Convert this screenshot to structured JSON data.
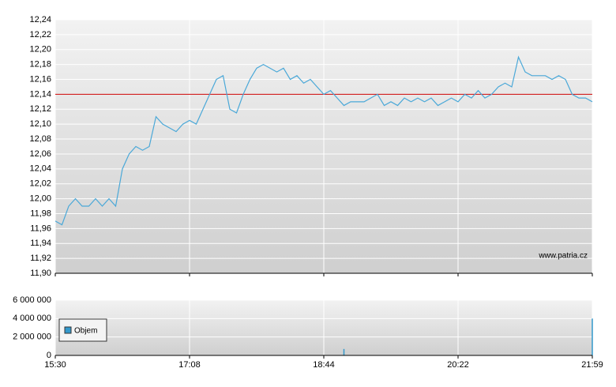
{
  "chart_data": [
    {
      "type": "line",
      "color": "#4aa8d8",
      "grid": true,
      "reference_line": 12.14,
      "reference_color": "#cc0000",
      "annotation": "www.patria.cz",
      "ylim": [
        11.9,
        12.24
      ],
      "yticks": [
        {
          "value": 11.9,
          "label": "11,90"
        },
        {
          "value": 11.92,
          "label": "11,92"
        },
        {
          "value": 11.94,
          "label": "11,94"
        },
        {
          "value": 11.96,
          "label": "11,96"
        },
        {
          "value": 11.98,
          "label": "11,98"
        },
        {
          "value": 12.0,
          "label": "12,00"
        },
        {
          "value": 12.02,
          "label": "12,02"
        },
        {
          "value": 12.04,
          "label": "12,04"
        },
        {
          "value": 12.06,
          "label": "12,06"
        },
        {
          "value": 12.08,
          "label": "12,08"
        },
        {
          "value": 12.1,
          "label": "12,10"
        },
        {
          "value": 12.12,
          "label": "12,12"
        },
        {
          "value": 12.14,
          "label": "12,14"
        },
        {
          "value": 12.16,
          "label": "12,16"
        },
        {
          "value": 12.18,
          "label": "12,18"
        },
        {
          "value": 12.2,
          "label": "12,20"
        },
        {
          "value": 12.22,
          "label": "12,22"
        },
        {
          "value": 12.24,
          "label": "12,24"
        }
      ],
      "values": [
        11.97,
        11.965,
        11.99,
        12.0,
        11.99,
        11.99,
        12.0,
        11.99,
        12.0,
        11.99,
        12.04,
        12.06,
        12.07,
        12.065,
        12.07,
        12.11,
        12.1,
        12.095,
        12.09,
        12.1,
        12.105,
        12.1,
        12.12,
        12.14,
        12.16,
        12.165,
        12.12,
        12.115,
        12.14,
        12.16,
        12.175,
        12.18,
        12.175,
        12.17,
        12.175,
        12.16,
        12.165,
        12.155,
        12.16,
        12.15,
        12.14,
        12.145,
        12.135,
        12.125,
        12.13,
        12.13,
        12.13,
        12.135,
        12.14,
        12.125,
        12.13,
        12.125,
        12.135,
        12.13,
        12.135,
        12.13,
        12.135,
        12.125,
        12.13,
        12.135,
        12.13,
        12.14,
        12.135,
        12.145,
        12.135,
        12.14,
        12.15,
        12.155,
        12.15,
        12.19,
        12.17,
        12.165,
        12.165,
        12.165,
        12.16,
        12.165,
        12.16,
        12.14,
        12.135,
        12.135,
        12.13
      ]
    },
    {
      "type": "bar",
      "grid": true,
      "legend": "upper left",
      "categories": [
        "15:30",
        null,
        null,
        null,
        null,
        null,
        null,
        null,
        null,
        null,
        null,
        null,
        null,
        null,
        null,
        null,
        null,
        null,
        null,
        null,
        "17:08",
        null,
        null,
        null,
        null,
        null,
        null,
        null,
        null,
        null,
        null,
        null,
        null,
        null,
        null,
        null,
        null,
        null,
        null,
        null,
        "18:44",
        null,
        null,
        null,
        null,
        null,
        null,
        null,
        null,
        null,
        null,
        null,
        null,
        null,
        null,
        null,
        null,
        null,
        null,
        null,
        "20:22",
        null,
        null,
        null,
        null,
        null,
        null,
        null,
        null,
        null,
        null,
        null,
        null,
        null,
        null,
        null,
        null,
        null,
        null,
        null,
        "21:59"
      ],
      "ylim": [
        0,
        6000000
      ],
      "yticks": [
        0,
        {
          "value": 2000000,
          "label": "2 000 000"
        },
        {
          "value": 4000000,
          "label": "4 000 000"
        },
        {
          "value": 6000000,
          "label": "6 000 000"
        }
      ],
      "series": [
        {
          "name": "Objem",
          "color": "#3399cc",
          "values": [
            0,
            0,
            0,
            0,
            0,
            0,
            0,
            0,
            0,
            0,
            0,
            0,
            0,
            0,
            0,
            0,
            0,
            0,
            0,
            0,
            0,
            0,
            0,
            0,
            0,
            0,
            0,
            0,
            0,
            0,
            0,
            0,
            0,
            0,
            0,
            0,
            0,
            0,
            0,
            0,
            0,
            0,
            0,
            700000,
            0,
            0,
            0,
            0,
            0,
            0,
            0,
            0,
            0,
            0,
            0,
            0,
            0,
            0,
            0,
            0,
            0,
            0,
            0,
            0,
            0,
            0,
            0,
            0,
            0,
            0,
            0,
            0,
            0,
            0,
            0,
            0,
            0,
            0,
            0,
            0,
            4000000
          ]
        }
      ]
    }
  ]
}
